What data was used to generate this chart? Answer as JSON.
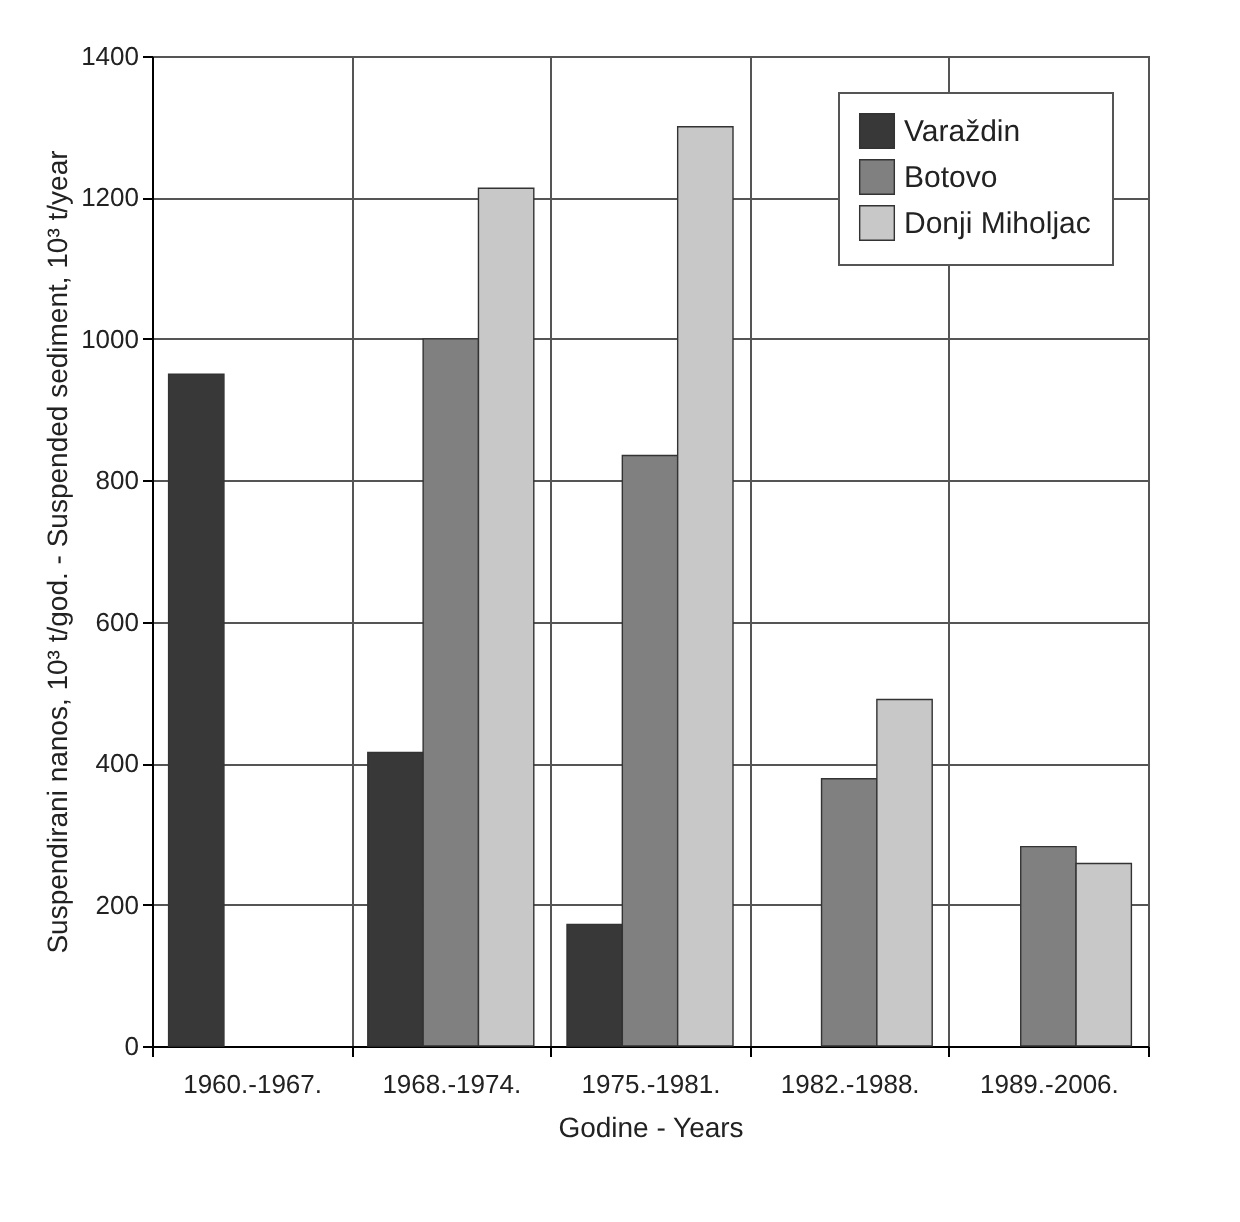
{
  "chart_data": {
    "type": "bar",
    "xlabel": "Godine - Years",
    "ylabel": "Suspendirani nanos, 10³ t/god. - Suspended sediment, 10³ t/year",
    "categories": [
      "1960.-1967.",
      "1968.-1974.",
      "1975.-1981.",
      "1982.-1988.",
      "1989.-2006."
    ],
    "series": [
      {
        "name": "Varaždin",
        "color": "#383838",
        "values": [
          950,
          415,
          172,
          null,
          null
        ]
      },
      {
        "name": "Botovo",
        "color": "#808080",
        "values": [
          null,
          1000,
          835,
          378,
          282
        ]
      },
      {
        "name": "Donji Miholjac",
        "color": "#c8c8c8",
        "values": [
          null,
          1213,
          1300,
          490,
          258
        ]
      }
    ],
    "ylim": [
      0,
      1400
    ],
    "yticks": [
      0,
      200,
      400,
      600,
      800,
      1000,
      1200,
      1400
    ],
    "grid": true,
    "legend": "top right"
  }
}
